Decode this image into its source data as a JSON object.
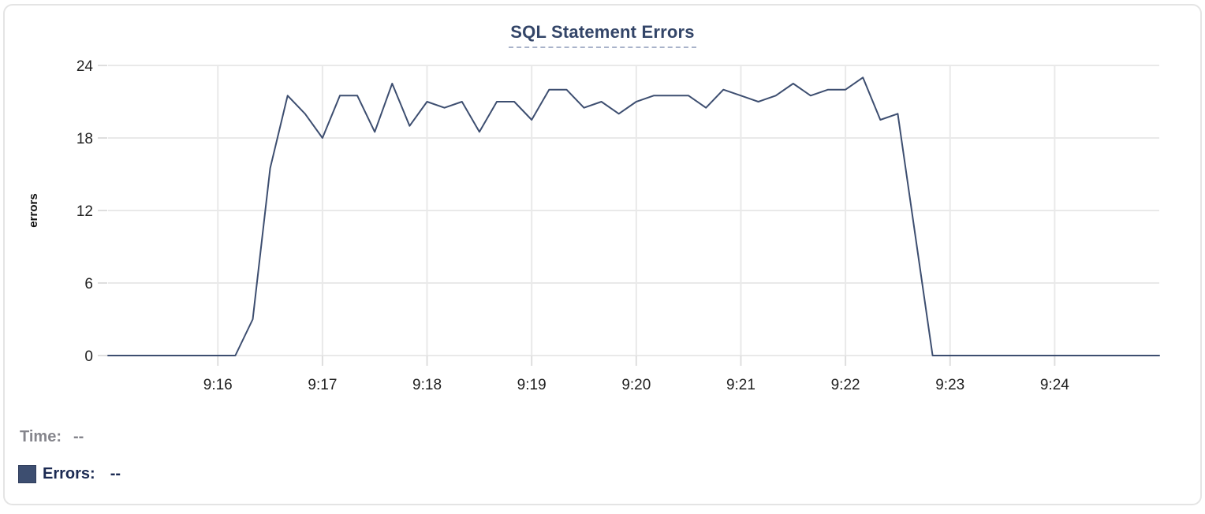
{
  "title": "SQL Statement Errors",
  "legend": {
    "time_label": "Time:",
    "time_value": "--",
    "errors_label": "Errors:",
    "errors_value": "--"
  },
  "colors": {
    "line": "#3d4e70",
    "swatch": "#3d4e70",
    "grid": "#e9e9e9",
    "tick": "#dedede",
    "axis_text": "#1f1f1f",
    "axis_title_text": "#111111",
    "title_text": "#334568",
    "title_underline": "#a9b3ca",
    "time_label_text": "#85858c",
    "errors_label_text": "#1b2a52",
    "card_border": "#e4e4e4"
  },
  "chart_data": {
    "type": "line",
    "title": "SQL Statement Errors",
    "xlabel": "",
    "ylabel": "errors",
    "ylim": [
      0,
      24
    ],
    "y_ticks": [
      0,
      6,
      12,
      18,
      24
    ],
    "x_ticks": [
      "9:16",
      "9:17",
      "9:18",
      "9:19",
      "9:20",
      "9:21",
      "9:22",
      "9:23",
      "9:24"
    ],
    "x_domain": [
      "9:14:57",
      "9:25:00"
    ],
    "grid": true,
    "legend_position": "bottom-left",
    "x": [
      "9:14:57",
      "9:15:00",
      "9:15:10",
      "9:15:20",
      "9:15:30",
      "9:15:40",
      "9:15:50",
      "9:16:00",
      "9:16:10",
      "9:16:20",
      "9:16:30",
      "9:16:40",
      "9:16:50",
      "9:17:00",
      "9:17:10",
      "9:17:20",
      "9:17:30",
      "9:17:40",
      "9:17:50",
      "9:18:00",
      "9:18:10",
      "9:18:20",
      "9:18:30",
      "9:18:40",
      "9:18:50",
      "9:19:00",
      "9:19:10",
      "9:19:20",
      "9:19:30",
      "9:19:40",
      "9:19:50",
      "9:20:00",
      "9:20:10",
      "9:20:20",
      "9:20:30",
      "9:20:40",
      "9:20:50",
      "9:21:00",
      "9:21:10",
      "9:21:20",
      "9:21:30",
      "9:21:40",
      "9:21:50",
      "9:22:00",
      "9:22:10",
      "9:22:20",
      "9:22:30",
      "9:22:40",
      "9:22:50",
      "9:23:00",
      "9:23:10",
      "9:23:20",
      "9:23:30",
      "9:23:40",
      "9:23:50",
      "9:24:00",
      "9:24:10",
      "9:24:20",
      "9:24:30",
      "9:24:40",
      "9:24:50",
      "9:25:00"
    ],
    "series": [
      {
        "name": "Errors",
        "values": [
          0,
          0,
          0,
          0,
          0,
          0,
          0,
          0,
          0,
          3,
          15.5,
          21.5,
          20,
          18,
          21.5,
          21.5,
          18.5,
          22.5,
          19,
          21,
          20.5,
          21,
          18.5,
          21,
          21,
          19.5,
          22,
          22,
          20.5,
          21,
          20,
          21,
          21.5,
          21.5,
          21.5,
          20.5,
          22,
          21.5,
          21,
          21.5,
          22.5,
          21.5,
          22,
          22,
          23,
          19.5,
          20,
          10,
          0,
          0,
          0,
          0,
          0,
          0,
          0,
          0,
          0,
          0,
          0,
          0,
          0,
          0
        ]
      }
    ]
  }
}
